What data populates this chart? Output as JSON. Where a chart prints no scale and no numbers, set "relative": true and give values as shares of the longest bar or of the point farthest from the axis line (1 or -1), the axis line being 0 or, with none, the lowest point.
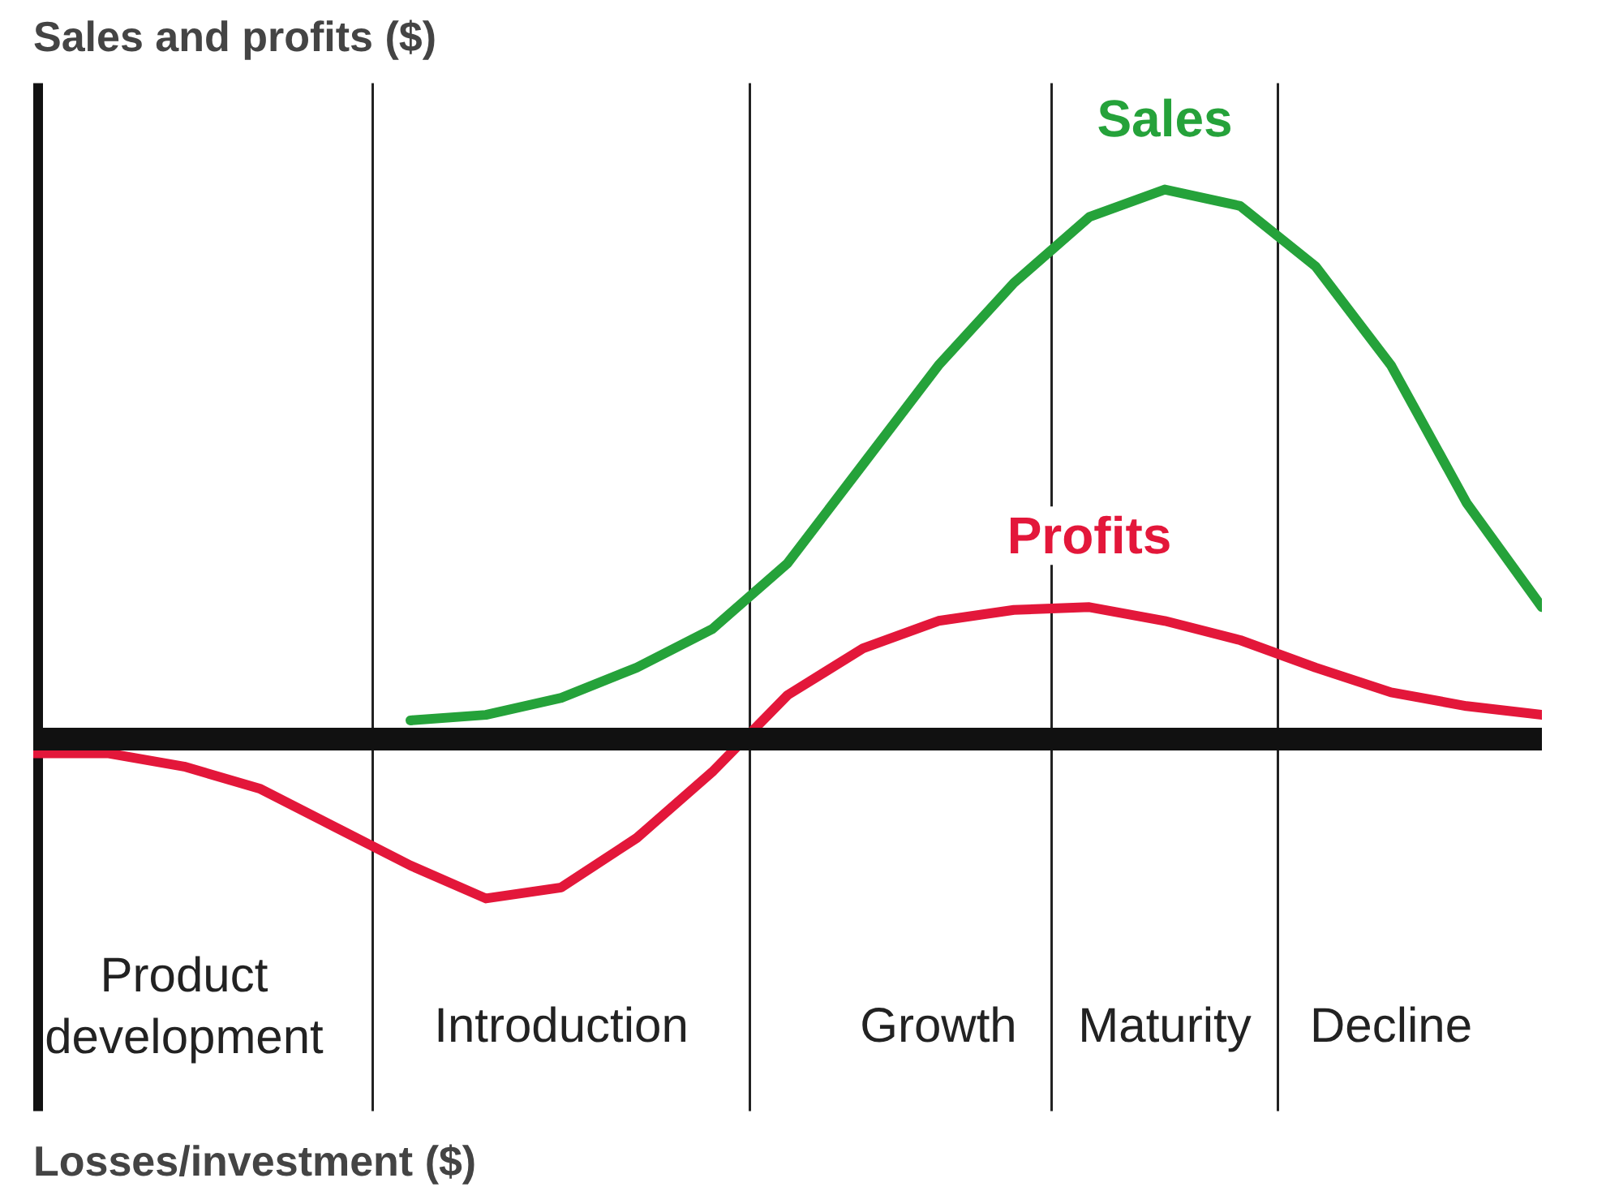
{
  "chart_data": {
    "type": "line",
    "relative": true,
    "ylabel": "Sales and profits ($)",
    "line_style": "solid",
    "marker": "none",
    "categories": [
      null,
      null,
      "Product development",
      null,
      null,
      null,
      null,
      "Introduction",
      null,
      null,
      null,
      null,
      "Growth",
      null,
      null,
      "Maturity",
      null,
      null,
      "Decline",
      null,
      null
    ],
    "series": [
      {
        "name": "Sales",
        "color": "#25a23a",
        "values": [
          null,
          null,
          null,
          null,
          null,
          0.034,
          0.044,
          0.075,
          0.13,
          0.2,
          0.32,
          0.5,
          0.68,
          0.83,
          0.95,
          1.0,
          0.97,
          0.86,
          0.68,
          0.43,
          0.24
        ]
      },
      {
        "name": "Profits",
        "color": "#e3173a",
        "values": [
          -0.026,
          -0.026,
          -0.05,
          -0.09,
          -0.16,
          -0.23,
          -0.29,
          -0.27,
          -0.18,
          -0.06,
          0.08,
          0.165,
          0.215,
          0.235,
          0.24,
          0.215,
          0.18,
          0.13,
          0.085,
          0.06,
          0.044
        ]
      }
    ],
    "annotations": [
      "Losses/investment ($)"
    ]
  }
}
